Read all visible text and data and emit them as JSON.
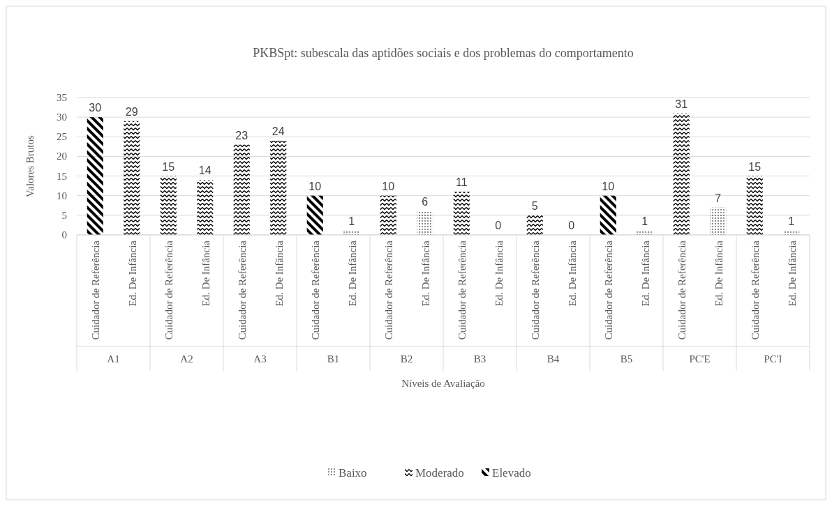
{
  "chart_data": {
    "type": "bar",
    "title": "PKBSpt: subescala das aptidões sociais e dos problemas do comportamento",
    "xlabel": "Níveis de Avaliação",
    "ylabel": "Valores Brutos",
    "categories": [
      "Cuidador de Referência",
      "Ed. De Infância",
      "Cuidador de Referência",
      "Ed. De Infância",
      "Cuidador de Referência",
      "Ed. De Infância",
      "Cuidador de Referência",
      "Ed. De Infância",
      "Cuidador de Referência",
      "Ed. De Infância",
      "Cuidador de Referência",
      "Ed. De Infância",
      "Cuidador de Referência",
      "Ed. De Infância",
      "Cuidador de Referência",
      "Ed. De Infância",
      "Cuidador de Referência",
      "Ed. De Infância",
      "Cuidador de Referência",
      "Ed. De Infância"
    ],
    "annotations": [
      "A1",
      "A2",
      "A3",
      "B1",
      "B2",
      "B3",
      "B4",
      "B5",
      "PC'E",
      "PC'I"
    ],
    "series": [
      {
        "name": "Baixo",
        "color": "#000000",
        "values": [
          null,
          null,
          null,
          null,
          null,
          null,
          null,
          1,
          null,
          6,
          null,
          0,
          null,
          0,
          null,
          1,
          null,
          7,
          null,
          1
        ]
      },
      {
        "name": "Moderado",
        "color": "#000000",
        "values": [
          null,
          29,
          15,
          14,
          23,
          24,
          null,
          null,
          10,
          null,
          11,
          null,
          5,
          null,
          null,
          null,
          31,
          null,
          15,
          null
        ]
      },
      {
        "name": "Elevado",
        "color": "#000000",
        "values": [
          30,
          null,
          null,
          null,
          null,
          null,
          10,
          null,
          null,
          null,
          null,
          null,
          null,
          null,
          10,
          null,
          null,
          null,
          null,
          null
        ]
      }
    ],
    "ylim": [
      0,
      35
    ],
    "yticks": [
      0,
      5,
      10,
      15,
      20,
      25,
      30,
      35
    ],
    "grid": "y",
    "data_labels": true,
    "legend": "bottom"
  }
}
